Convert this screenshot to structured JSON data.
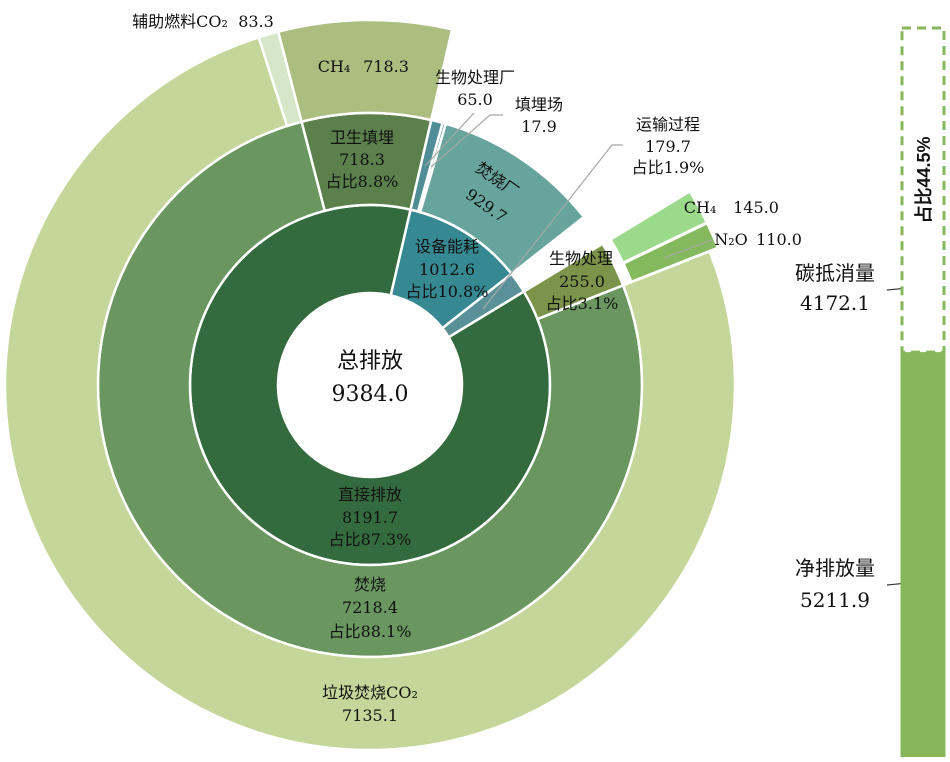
{
  "chart_data": {
    "type": "sunburst",
    "center": {
      "label": "总排放",
      "value": "9384.0"
    },
    "total": 9384.0,
    "start_angle_deg": 13,
    "nodes": [
      {
        "key": "equip",
        "label": "设备能耗",
        "value": 1012.6,
        "value_text": "1012.6",
        "share": "占比10.8%",
        "color": "#368892",
        "children": [
          {
            "key": "bioplant",
            "label": "生物处理厂",
            "value": 65.0,
            "value_text": "65.0",
            "color": "#4f8d97"
          },
          {
            "key": "landfillplant",
            "label": "填埋场",
            "value": 17.9,
            "value_text": "17.9",
            "color": "#4f8d97"
          },
          {
            "key": "incplant",
            "label": "焚烧厂",
            "value": 929.7,
            "value_text": "929.7",
            "color": "#66a49d"
          }
        ]
      },
      {
        "key": "transport",
        "label": "运输过程",
        "value": 179.7,
        "value_text": "179.7",
        "share": "占比1.9%",
        "color": "#5a9199",
        "children": []
      },
      {
        "key": "direct",
        "label": "直接排放",
        "value": 8191.7,
        "value_text": "8191.7",
        "share": "占比87.3%",
        "color": "#336b3f",
        "children": [
          {
            "key": "bio",
            "label": "生物处理",
            "value": 255.0,
            "value_text": "255.0",
            "share": "占比3.1%",
            "color": "#7b9449",
            "children": [
              {
                "key": "bioch4",
                "label": "CH₄",
                "value": 145.0,
                "value_text": "145.0",
                "color": "#9bd98b"
              },
              {
                "key": "bion2o",
                "label": "N₂O",
                "value": 110.0,
                "value_text": "110.0",
                "color": "#85b95d"
              }
            ]
          },
          {
            "key": "inc",
            "label": "焚烧",
            "value": 7218.4,
            "value_text": "7218.4",
            "share": "占比88.1%",
            "color": "#6a9660",
            "children": [
              {
                "key": "incco2",
                "label": "垃圾焚烧CO₂",
                "value": 7135.1,
                "value_text": "7135.1",
                "color": "#c4d699"
              },
              {
                "key": "auxco2",
                "label": "辅助燃料CO₂",
                "value": 83.3,
                "value_text": "83.3",
                "color": "#d5e6c9"
              }
            ]
          },
          {
            "key": "landfill",
            "label": "卫生填埋",
            "value": 718.3,
            "value_text": "718.3",
            "share": "占比8.8%",
            "color": "#5b804c",
            "children": [
              {
                "key": "lfch4",
                "label": "CH₄",
                "value": 718.3,
                "value_text": "718.3",
                "color": "#abbe80"
              }
            ]
          }
        ]
      }
    ],
    "offset_bar": {
      "offset": {
        "label": "碳抵消量",
        "value": 4172.1,
        "value_text": "4172.1",
        "share": "占比44.5%",
        "style": "dashed",
        "color": "#86b75a"
      },
      "net": {
        "label": "净排放量",
        "value": 5211.9,
        "value_text": "5211.9",
        "color": "#86b75a"
      }
    }
  }
}
